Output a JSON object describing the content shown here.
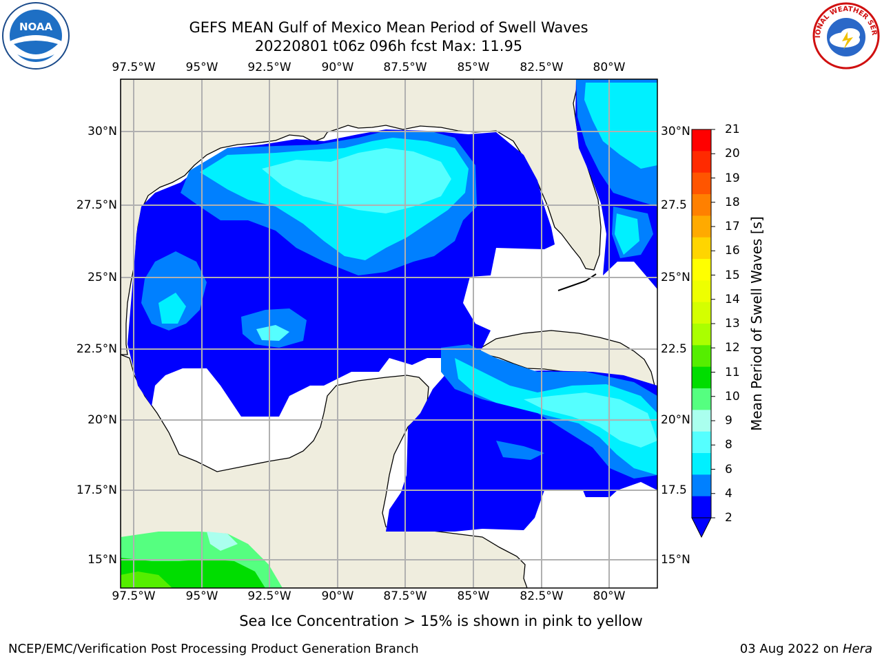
{
  "header": {
    "title_line1": "GEFS MEAN Gulf of Mexico Mean Period of Swell Waves",
    "title_line2": "20220801 t06z 096h fcst   Max: 11.95"
  },
  "logos": {
    "left": {
      "name": "noaa-logo",
      "text": "NOAA"
    },
    "right": {
      "name": "nws-logo",
      "text": "NATIONAL WEATHER SERVICE"
    }
  },
  "map": {
    "lon_labels": [
      "97.5°W",
      "95°W",
      "92.5°W",
      "90°W",
      "87.5°W",
      "85°W",
      "82.5°W",
      "80°W"
    ],
    "lat_labels_left": [
      "30°N",
      "27.5°N",
      "25°N",
      "22.5°N",
      "20°N",
      "17.5°N",
      "15°N"
    ],
    "lat_labels_right": [
      "30°N",
      "27.5",
      "25°N",
      "22.5",
      "20°N",
      "17.5",
      "15°N"
    ],
    "land_color": "#efedde",
    "ocean_color": "#ffffff",
    "grid_color": "#b0b0b0"
  },
  "colorbar": {
    "title": "Mean Period of Swell Waves [s]",
    "ticks": [
      "21",
      "20",
      "19",
      "18",
      "17",
      "16",
      "15",
      "14",
      "13",
      "12",
      "11",
      "10",
      "9",
      "8",
      "6",
      "4",
      "2"
    ],
    "colors_top_to_bottom": [
      "#ff0000",
      "#ff2a00",
      "#ff5500",
      "#ff8000",
      "#ffaa00",
      "#ffd500",
      "#ffff00",
      "#eeff00",
      "#d4ff00",
      "#aaff00",
      "#55ee00",
      "#00dd00",
      "#55ff80",
      "#aaffee",
      "#55ffff",
      "#00f0ff",
      "#0080ff",
      "#0000ff"
    ]
  },
  "footer": {
    "ice_note": "Sea Ice Concentration > 15% is shown in pink to yellow",
    "left": "NCEP/EMC/Verification Post Processing Product Generation Branch",
    "right_date": "03 Aug 2022 on ",
    "right_host": "Hera"
  }
}
